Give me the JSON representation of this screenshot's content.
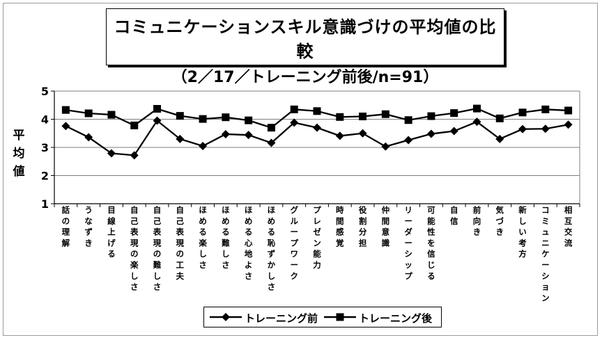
{
  "chart_data": {
    "type": "line",
    "title": "コミュニケーションスキル意識づけの平均値の比較",
    "subtitle": "（2／17／トレーニング前後/n=91）",
    "ylabel": "平均値",
    "xlabel": "",
    "ylim": [
      1,
      5
    ],
    "yticks": [
      1,
      2,
      3,
      4,
      5
    ],
    "grid": true,
    "legend_position": "bottom",
    "categories": [
      "話の理解",
      "うなずき",
      "目線上げる",
      "自己表現の楽しさ",
      "自己表現の難しさ",
      "自己表現の工夫",
      "ほめる楽しさ",
      "ほめる難しさ",
      "ほめる心地よさ",
      "ほめる恥ずかしさ",
      "グループワーク",
      "プレゼン能力",
      "時間感覚",
      "役割分担",
      "仲間意識",
      "リーダーシップ",
      "可能性を信じる",
      "自信",
      "前向き",
      "気づき",
      "新しい考方",
      "コミュニケーション",
      "相互交流"
    ],
    "series": [
      {
        "name": "トレーニング前",
        "marker": "diamond",
        "values": [
          3.76,
          3.36,
          2.79,
          2.72,
          3.95,
          3.3,
          3.05,
          3.47,
          3.44,
          3.16,
          3.88,
          3.7,
          3.41,
          3.5,
          3.03,
          3.26,
          3.48,
          3.58,
          3.91,
          3.3,
          3.65,
          3.66,
          3.81
        ]
      },
      {
        "name": "トレーニング後",
        "marker": "square",
        "values": [
          4.33,
          4.21,
          4.16,
          3.78,
          4.37,
          4.12,
          4.01,
          4.07,
          3.96,
          3.7,
          4.35,
          4.29,
          4.08,
          4.1,
          4.18,
          3.97,
          4.11,
          4.22,
          4.38,
          4.03,
          4.24,
          4.35,
          4.31
        ]
      }
    ],
    "colors": {
      "line": "#000000",
      "grid": "#7f7f7f"
    }
  }
}
